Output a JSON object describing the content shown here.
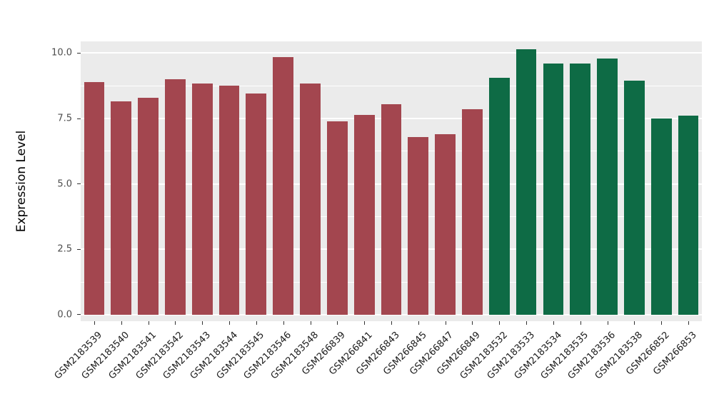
{
  "chart_data": {
    "type": "bar",
    "title": "",
    "xlabel": "",
    "ylabel": "Expression Level",
    "legend": "none",
    "grid": true,
    "panel_bg": "#EBEBEB",
    "grid_color": "#FFFFFF",
    "ylim_display": [
      -0.25,
      10.45
    ],
    "yticks": [
      0.0,
      2.5,
      5.0,
      7.5,
      10.0
    ],
    "ytick_labels": [
      "0.0",
      "2.5",
      "5.0",
      "7.5",
      "10.0"
    ],
    "minor_yticks": [
      1.25,
      3.75,
      6.25,
      8.75
    ],
    "bar_width_fraction": 0.76,
    "categories": [
      "GSM2183539",
      "GSM2183540",
      "GSM2183541",
      "GSM2183542",
      "GSM2183543",
      "GSM2183544",
      "GSM2183545",
      "GSM2183546",
      "GSM2183548",
      "GSM266839",
      "GSM266841",
      "GSM266843",
      "GSM266845",
      "GSM266847",
      "GSM266849",
      "GSM2183532",
      "GSM2183533",
      "GSM2183534",
      "GSM2183535",
      "GSM2183536",
      "GSM2183538",
      "GSM266852",
      "GSM266853"
    ],
    "values": [
      8.9,
      8.15,
      8.3,
      9.0,
      8.85,
      8.75,
      8.45,
      9.85,
      8.85,
      7.4,
      7.65,
      8.05,
      6.8,
      6.9,
      7.85,
      9.05,
      10.15,
      9.6,
      9.6,
      9.8,
      8.95,
      7.5,
      7.6
    ],
    "bar_groups": [
      "maroon",
      "maroon",
      "maroon",
      "maroon",
      "maroon",
      "maroon",
      "maroon",
      "maroon",
      "maroon",
      "maroon",
      "maroon",
      "maroon",
      "maroon",
      "maroon",
      "maroon",
      "green",
      "green",
      "green",
      "green",
      "green",
      "green",
      "green",
      "green"
    ],
    "group_colors": {
      "maroon": "#A3464F",
      "green": "#0E6B45"
    }
  }
}
